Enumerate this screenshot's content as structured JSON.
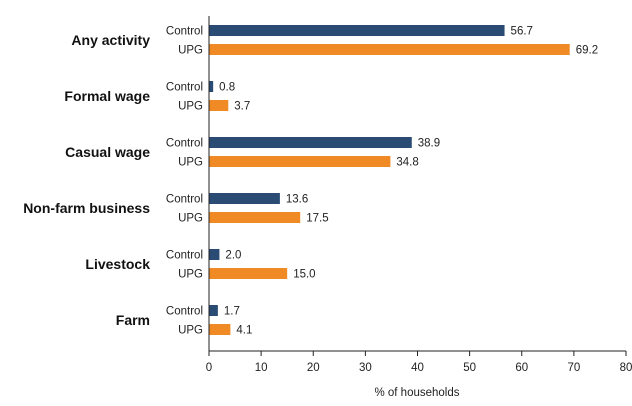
{
  "chart_data": {
    "type": "bar",
    "orientation": "horizontal",
    "categories": [
      "Any activity",
      "Formal wage",
      "Casual wage",
      "Non-farm business",
      "Livestock",
      "Farm"
    ],
    "series": [
      {
        "name": "Control",
        "color": "#2a4b73",
        "values": [
          56.7,
          0.8,
          38.9,
          13.6,
          2.0,
          1.7
        ]
      },
      {
        "name": "UPG",
        "color": "#f08a24",
        "values": [
          69.2,
          3.7,
          34.8,
          17.5,
          15.0,
          4.1
        ]
      }
    ],
    "xlabel": "% of households",
    "xlim": [
      0,
      80
    ],
    "xticks": [
      0,
      10,
      20,
      30,
      40,
      50,
      60,
      70,
      80
    ],
    "grid": false,
    "legend": "none"
  }
}
